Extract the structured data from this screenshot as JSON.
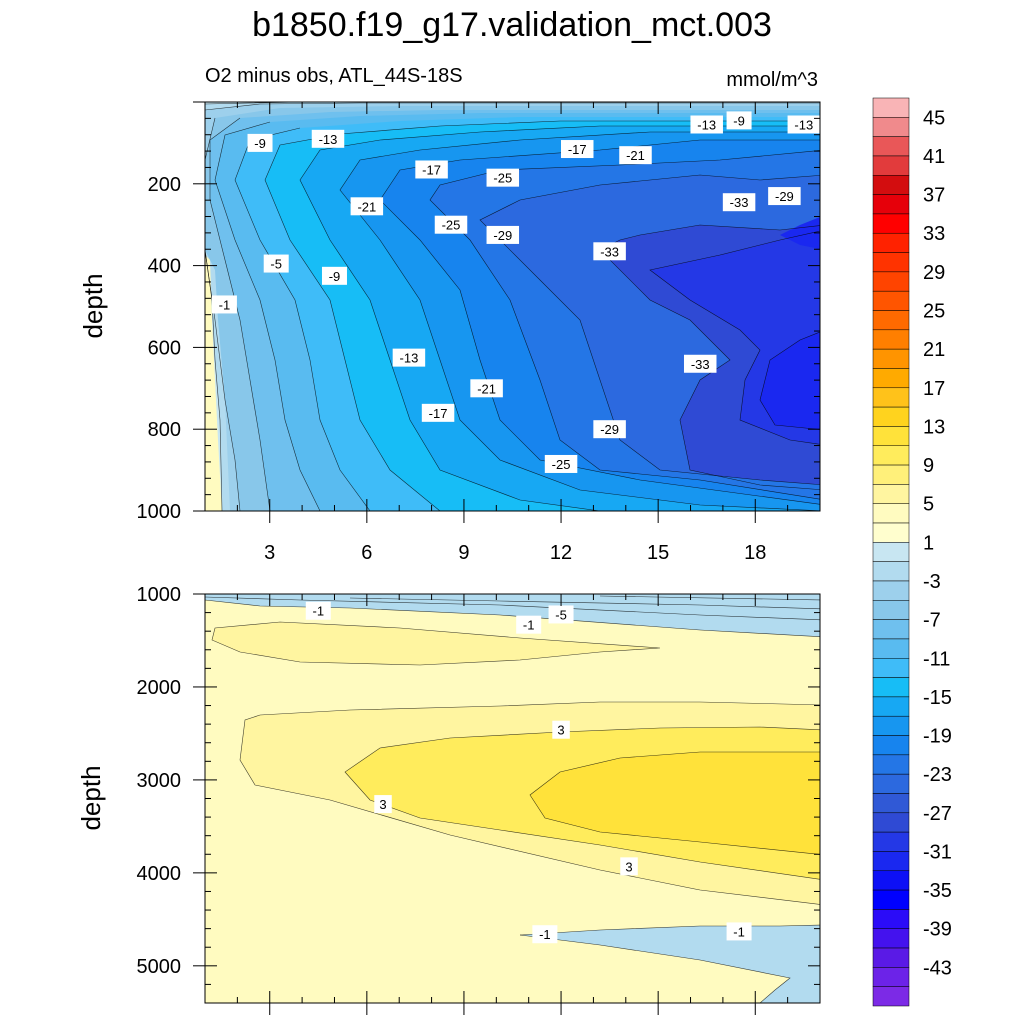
{
  "chart_data": {
    "type": "contour",
    "title": "b1850.f19_g17.validation_mct.003",
    "subtitle_left": "O2 minus obs, ATL_44S-18S",
    "subtitle_right": "mmol/m^3",
    "x_range": [
      1,
      20
    ],
    "panels": [
      {
        "name": "upper",
        "ylabel": "depth",
        "ylim": [
          0,
          1000
        ],
        "xticks": [
          "3",
          "6",
          "9",
          "12",
          "15",
          "18"
        ],
        "yticks": [
          "200",
          "400",
          "600",
          "800",
          "1000"
        ],
        "contour_labels": [
          {
            "text": "-9",
            "x": 2.7,
            "y": 100
          },
          {
            "text": "-13",
            "x": 4.8,
            "y": 90
          },
          {
            "text": "-17",
            "x": 8.0,
            "y": 165
          },
          {
            "text": "-21",
            "x": 6.0,
            "y": 255
          },
          {
            "text": "-25",
            "x": 10.2,
            "y": 185
          },
          {
            "text": "-17",
            "x": 12.5,
            "y": 115
          },
          {
            "text": "-21",
            "x": 14.3,
            "y": 130
          },
          {
            "text": "-13",
            "x": 16.5,
            "y": 55
          },
          {
            "text": "-9",
            "x": 17.5,
            "y": 45
          },
          {
            "text": "-13",
            "x": 19.5,
            "y": 55
          },
          {
            "text": "-33",
            "x": 17.5,
            "y": 245
          },
          {
            "text": "-29",
            "x": 18.9,
            "y": 230
          },
          {
            "text": "-25",
            "x": 8.6,
            "y": 300
          },
          {
            "text": "-29",
            "x": 10.2,
            "y": 325
          },
          {
            "text": "-33",
            "x": 13.5,
            "y": 365
          },
          {
            "text": "-5",
            "x": 3.2,
            "y": 395
          },
          {
            "text": "-9",
            "x": 5.0,
            "y": 425
          },
          {
            "text": "-1",
            "x": 1.6,
            "y": 495
          },
          {
            "text": "-13",
            "x": 7.3,
            "y": 625
          },
          {
            "text": "-21",
            "x": 9.7,
            "y": 700
          },
          {
            "text": "-33",
            "x": 16.3,
            "y": 640
          },
          {
            "text": "-17",
            "x": 8.2,
            "y": 760
          },
          {
            "text": "-29",
            "x": 13.5,
            "y": 800
          },
          {
            "text": "-25",
            "x": 12.0,
            "y": 885
          }
        ]
      },
      {
        "name": "lower",
        "ylabel": "depth",
        "ylim": [
          1000,
          5400
        ],
        "yticks": [
          "1000",
          "2000",
          "3000",
          "4000",
          "5000"
        ],
        "contour_labels": [
          {
            "text": "-1",
            "x": 4.5,
            "y": 1180
          },
          {
            "text": "-1",
            "x": 11.0,
            "y": 1330
          },
          {
            "text": "-5",
            "x": 12.0,
            "y": 1220
          },
          {
            "text": "3",
            "x": 12.0,
            "y": 2460
          },
          {
            "text": "3",
            "x": 6.5,
            "y": 3260
          },
          {
            "text": "3",
            "x": 14.1,
            "y": 3930
          },
          {
            "text": "-1",
            "x": 11.5,
            "y": 4660
          },
          {
            "text": "-1",
            "x": 17.5,
            "y": 4630
          }
        ]
      }
    ],
    "colorbar": {
      "labels": [
        "45",
        "41",
        "37",
        "33",
        "29",
        "25",
        "21",
        "17",
        "13",
        "9",
        "5",
        "1",
        "-3",
        "-7",
        "-11",
        "-15",
        "-19",
        "-23",
        "-27",
        "-31",
        "-35",
        "-39",
        "-43"
      ],
      "colors": [
        "#f9b4b6",
        "#f08a8c",
        "#e95758",
        "#e23b3c",
        "#d30d0f",
        "#e6000a",
        "#ff0000",
        "#ff2200",
        "#ff3300",
        "#ff4400",
        "#ff5500",
        "#ff6a00",
        "#ff7f00",
        "#ff9400",
        "#ffaa00",
        "#ffc21a",
        "#ffd31e",
        "#ffe23a",
        "#ffec5c",
        "#fff07a",
        "#fff5a0",
        "#fffbc0",
        "#fffece",
        "#c8e6f2",
        "#b2dbef",
        "#9dd0ec",
        "#88c7ea",
        "#6fc0ee",
        "#59bbf0",
        "#3fbcf8",
        "#17bdf6",
        "#17a8f3",
        "#1796f0",
        "#1784ee",
        "#2476e6",
        "#2c69df",
        "#3059d6",
        "#2f4ad4",
        "#2438e6",
        "#1a28f0",
        "#0d10f6",
        "#0000ff",
        "#2b0cf8",
        "#4412ee",
        "#5a1ae6",
        "#6c23e8",
        "#7c2ae6"
      ]
    }
  }
}
